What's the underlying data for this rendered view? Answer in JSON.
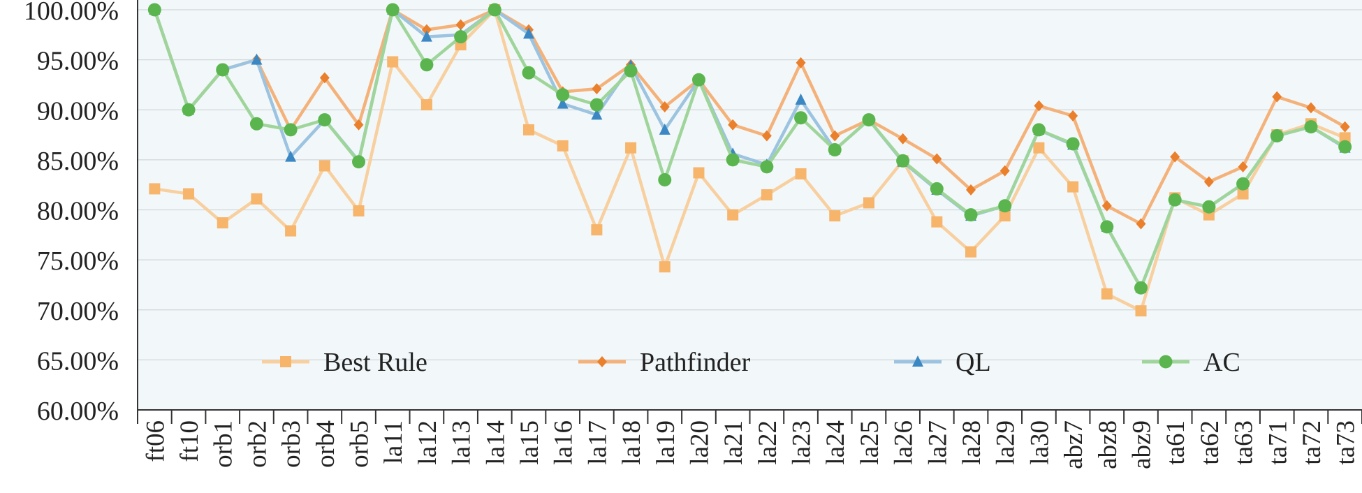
{
  "chart_data": {
    "type": "line",
    "title": "",
    "xlabel": "",
    "ylabel": "",
    "ylim": [
      60,
      100
    ],
    "yticks": [
      "60.00%",
      "65.00%",
      "70.00%",
      "75.00%",
      "80.00%",
      "85.00%",
      "90.00%",
      "95.00%",
      "100.00%"
    ],
    "grid": true,
    "legend_position": "bottom-inside",
    "categories": [
      "ft06",
      "ft10",
      "orb1",
      "orb2",
      "orb3",
      "orb4",
      "orb5",
      "la11",
      "la12",
      "la13",
      "la14",
      "la15",
      "la16",
      "la17",
      "la18",
      "la19",
      "la20",
      "la21",
      "la22",
      "la23",
      "la24",
      "la25",
      "la26",
      "la27",
      "la28",
      "la29",
      "la30",
      "abz7",
      "abz8",
      "abz9",
      "ta61",
      "ta62",
      "ta63",
      "ta71",
      "ta72",
      "ta73"
    ],
    "series": [
      {
        "name": "Best Rule",
        "color": "#f8cf9f",
        "marker_color": "#f7b46b",
        "marker": "square",
        "values": [
          82.1,
          81.6,
          78.7,
          81.1,
          77.9,
          84.4,
          79.9,
          94.8,
          90.5,
          96.5,
          100,
          88.0,
          86.4,
          78.0,
          86.2,
          74.3,
          83.7,
          79.5,
          81.5,
          83.6,
          79.4,
          80.7,
          84.9,
          78.8,
          75.8,
          79.4,
          86.2,
          82.3,
          71.6,
          69.9,
          81.2,
          79.5,
          81.6,
          87.5,
          88.6,
          87.2
        ]
      },
      {
        "name": "Pathfinder",
        "color": "#f4b27a",
        "marker_color": "#ea7f2c",
        "marker": "diamond",
        "values": [
          100,
          90.0,
          94.0,
          95.0,
          88.0,
          93.2,
          88.5,
          100,
          98.0,
          98.5,
          100,
          98.0,
          91.8,
          92.1,
          94.5,
          90.3,
          93.0,
          88.5,
          87.4,
          94.7,
          87.4,
          89.0,
          87.1,
          85.1,
          82.0,
          83.9,
          90.4,
          89.4,
          80.4,
          78.6,
          85.3,
          82.8,
          84.3,
          91.3,
          90.2,
          88.3
        ]
      },
      {
        "name": "QL",
        "color": "#9cc3e0",
        "marker_color": "#3a87c4",
        "marker": "triangle",
        "values": [
          100,
          90.0,
          94.0,
          95.0,
          85.3,
          89.0,
          84.9,
          100,
          97.3,
          97.5,
          100,
          97.6,
          90.6,
          89.5,
          94.4,
          88.0,
          93.0,
          85.6,
          84.5,
          91.0,
          86.0,
          89.0,
          84.8,
          82.0,
          79.4,
          80.4,
          88.0,
          86.5,
          78.3,
          72.2,
          81.0,
          80.3,
          82.6,
          87.4,
          88.3,
          86.2
        ]
      },
      {
        "name": "AC",
        "color": "#9fd59a",
        "marker_color": "#5bb54e",
        "marker": "circle",
        "values": [
          100,
          90.0,
          94.0,
          88.6,
          88.0,
          89.0,
          84.8,
          100,
          94.5,
          97.3,
          100,
          93.7,
          91.5,
          90.5,
          93.9,
          83.0,
          93.0,
          85.0,
          84.3,
          89.2,
          86.0,
          89.0,
          84.9,
          82.1,
          79.5,
          80.4,
          88.0,
          86.6,
          78.3,
          72.2,
          81.0,
          80.3,
          82.6,
          87.4,
          88.3,
          86.3
        ]
      }
    ]
  }
}
